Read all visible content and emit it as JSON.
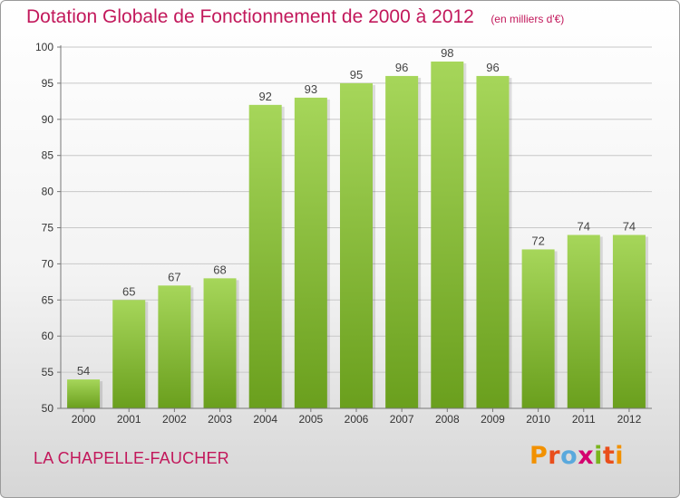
{
  "header": {
    "title": "Dotation Globale de Fonctionnement de 2000 à 2012",
    "unit": "(en milliers d'€)"
  },
  "commune": "LA CHAPELLE-FAUCHER",
  "logo": {
    "letters": [
      "P",
      "r",
      "o",
      "x",
      "i",
      "t",
      "i"
    ],
    "colors": [
      "#f29100",
      "#e94e1b",
      "#5aa9dd",
      "#d4006f",
      "#7ab51d",
      "#e94e1b",
      "#f29100"
    ]
  },
  "chart_data": {
    "type": "bar",
    "categories": [
      "2000",
      "2001",
      "2002",
      "2003",
      "2004",
      "2005",
      "2006",
      "2007",
      "2008",
      "2009",
      "2010",
      "2011",
      "2012"
    ],
    "values": [
      54,
      65,
      67,
      68,
      92,
      93,
      95,
      96,
      98,
      96,
      72,
      74,
      74
    ],
    "data_labels": [
      "54",
      "65",
      "67",
      "68",
      "92",
      "93",
      "95",
      "96",
      "98",
      "96",
      "72",
      "74",
      "74"
    ],
    "title": "Dotation Globale de Fonctionnement de 2000 à 2012",
    "xlabel": "",
    "ylabel": "",
    "ylim": [
      50,
      100
    ],
    "yticks": [
      50,
      55,
      60,
      65,
      70,
      75,
      80,
      85,
      90,
      95,
      100
    ],
    "ytick_labels": [
      "50",
      "55",
      "60",
      "65",
      "70",
      "75",
      "80",
      "85",
      "90",
      "95",
      "100"
    ],
    "grid": true,
    "bar_color_top": "#a6d65a",
    "bar_color_bottom": "#6a9f1d"
  }
}
